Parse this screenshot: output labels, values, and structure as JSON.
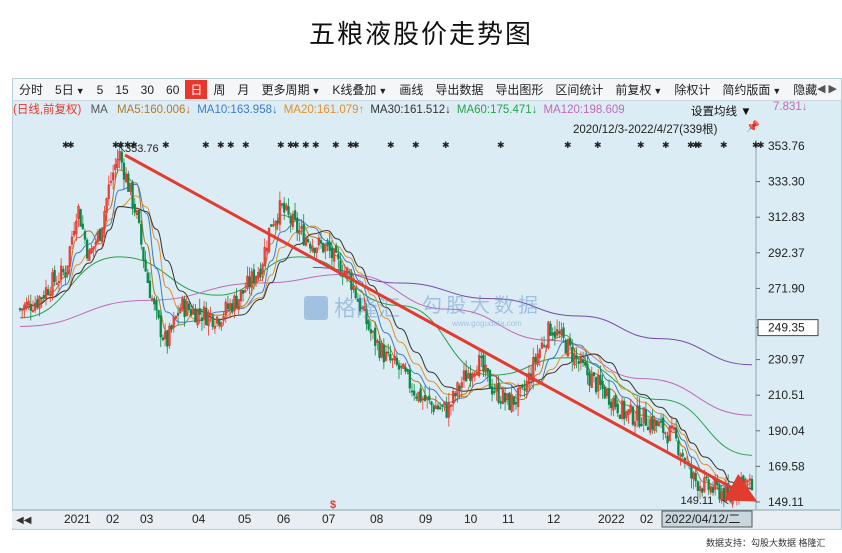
{
  "title": "五粮液股价走势图",
  "toolbar": {
    "items": [
      {
        "label": "分时",
        "dropdown": false,
        "active": false
      },
      {
        "label": "5日",
        "dropdown": true,
        "active": false
      },
      {
        "label": "5",
        "dropdown": false,
        "active": false
      },
      {
        "label": "15",
        "dropdown": false,
        "active": false
      },
      {
        "label": "30",
        "dropdown": false,
        "active": false
      },
      {
        "label": "60",
        "dropdown": false,
        "active": false
      },
      {
        "label": "日",
        "dropdown": false,
        "active": true
      },
      {
        "label": "周",
        "dropdown": false,
        "active": false
      },
      {
        "label": "月",
        "dropdown": false,
        "active": false
      },
      {
        "label": "更多周期",
        "dropdown": true,
        "active": false
      },
      {
        "label": "K线叠加",
        "dropdown": true,
        "active": false
      },
      {
        "label": "画线",
        "dropdown": false,
        "active": false
      },
      {
        "label": "导出数据",
        "dropdown": false,
        "active": false
      },
      {
        "label": "导出图形",
        "dropdown": false,
        "active": false
      },
      {
        "label": "区间统计",
        "dropdown": false,
        "active": false
      },
      {
        "label": "前复权",
        "dropdown": true,
        "active": false
      },
      {
        "label": "除权计",
        "dropdown": false,
        "active": false
      },
      {
        "label": "简约版面",
        "dropdown": true,
        "active": false
      },
      {
        "label": "隐藏",
        "dropdown": false,
        "active": false
      }
    ],
    "right_arrows": "◀ ▶"
  },
  "ma_legend": {
    "prefix": "(日线,前复权)",
    "ma": "MA",
    "items": [
      {
        "label": "MA5:160.006↓",
        "color": "#b07a2a"
      },
      {
        "label": "MA10:163.958↓",
        "color": "#3d7cc9"
      },
      {
        "label": "MA20:161.079↑",
        "color": "#e0902a"
      },
      {
        "label": "MA30:161.512↓",
        "color": "#333333"
      },
      {
        "label": "MA60:175.471↓",
        "color": "#27a24a"
      },
      {
        "label": "MA120:198.609",
        "color": "#c06ab8"
      }
    ],
    "tail": "7.831↓",
    "set_label": "设置均线"
  },
  "range_label": "2020/12/3-2022/4/27(339根)",
  "watermark": {
    "brand": "格隆汇",
    "site": "勾股大数据",
    "url": "www.gogudata.com"
  },
  "footer": "数据支持：勾股大数据  格隆汇",
  "colors": {
    "up": "#e8382c",
    "down": "#0a8a4a",
    "trend": "#e23b2f"
  },
  "chart_data": {
    "type": "candlestick",
    "title": "五粮液股价走势图",
    "period": "2020/12/3-2022/4/27",
    "bar_count": 339,
    "adjustment": "前复权",
    "yaxis_ticks": [
      "353.76",
      "333.30",
      "312.83",
      "292.37",
      "271.90",
      "249.35",
      "230.97",
      "210.51",
      "190.04",
      "169.58",
      "149.11"
    ],
    "ylim": [
      145,
      360
    ],
    "current_price": "249.35",
    "x_labels": [
      "2021",
      "02",
      "03",
      "04",
      "05",
      "06",
      "07",
      "08",
      "09",
      "10",
      "11",
      "12",
      "2022",
      "02"
    ],
    "cursor_date": "2022/04/12/二",
    "max_annotation": {
      "label": "353.76",
      "value": 353.76,
      "date": "2021-02-10"
    },
    "min_annotation": {
      "label": "149.11",
      "value": 149.11,
      "date": "2022-04-12"
    },
    "trendline": {
      "from": {
        "date": "2021-02-10",
        "value": 352
      },
      "to": {
        "date": "2022-04-27",
        "value": 151
      }
    },
    "series_close": [
      {
        "date": "2020-12-03",
        "value": 260
      },
      {
        "date": "2020-12-15",
        "value": 265
      },
      {
        "date": "2020-12-25",
        "value": 275
      },
      {
        "date": "2021-01-04",
        "value": 282
      },
      {
        "date": "2021-01-12",
        "value": 320
      },
      {
        "date": "2021-01-20",
        "value": 290
      },
      {
        "date": "2021-01-28",
        "value": 305
      },
      {
        "date": "2021-02-03",
        "value": 330
      },
      {
        "date": "2021-02-10",
        "value": 350
      },
      {
        "date": "2021-02-22",
        "value": 315
      },
      {
        "date": "2021-03-01",
        "value": 280
      },
      {
        "date": "2021-03-08",
        "value": 255
      },
      {
        "date": "2021-03-15",
        "value": 240
      },
      {
        "date": "2021-03-25",
        "value": 262
      },
      {
        "date": "2021-04-06",
        "value": 258
      },
      {
        "date": "2021-04-20",
        "value": 255
      },
      {
        "date": "2021-05-06",
        "value": 268
      },
      {
        "date": "2021-05-20",
        "value": 285
      },
      {
        "date": "2021-05-27",
        "value": 310
      },
      {
        "date": "2021-06-03",
        "value": 318
      },
      {
        "date": "2021-06-15",
        "value": 305
      },
      {
        "date": "2021-06-25",
        "value": 298
      },
      {
        "date": "2021-07-05",
        "value": 295
      },
      {
        "date": "2021-07-12",
        "value": 286
      },
      {
        "date": "2021-07-20",
        "value": 280
      },
      {
        "date": "2021-07-28",
        "value": 262
      },
      {
        "date": "2021-08-05",
        "value": 245
      },
      {
        "date": "2021-08-15",
        "value": 232
      },
      {
        "date": "2021-08-25",
        "value": 225
      },
      {
        "date": "2021-09-05",
        "value": 212
      },
      {
        "date": "2021-09-15",
        "value": 205
      },
      {
        "date": "2021-09-27",
        "value": 202
      },
      {
        "date": "2021-10-08",
        "value": 220
      },
      {
        "date": "2021-10-18",
        "value": 230
      },
      {
        "date": "2021-10-28",
        "value": 215
      },
      {
        "date": "2021-11-08",
        "value": 206
      },
      {
        "date": "2021-11-18",
        "value": 210
      },
      {
        "date": "2021-11-29",
        "value": 235
      },
      {
        "date": "2021-12-08",
        "value": 250
      },
      {
        "date": "2021-12-18",
        "value": 240
      },
      {
        "date": "2021-12-28",
        "value": 228
      },
      {
        "date": "2022-01-07",
        "value": 218
      },
      {
        "date": "2022-01-18",
        "value": 210
      },
      {
        "date": "2022-01-28",
        "value": 200
      },
      {
        "date": "2022-02-10",
        "value": 198
      },
      {
        "date": "2022-02-22",
        "value": 192
      },
      {
        "date": "2022-03-04",
        "value": 186
      },
      {
        "date": "2022-03-10",
        "value": 176
      },
      {
        "date": "2022-03-16",
        "value": 163
      },
      {
        "date": "2022-03-25",
        "value": 158
      },
      {
        "date": "2022-04-06",
        "value": 155
      },
      {
        "date": "2022-04-12",
        "value": 151
      },
      {
        "date": "2022-04-20",
        "value": 163
      },
      {
        "date": "2022-04-27",
        "value": 157
      }
    ],
    "ma_lines": [
      {
        "name": "MA60",
        "color": "#27a24a",
        "points": [
          {
            "date": "2020-12-03",
            "value": 255
          },
          {
            "date": "2021-02-10",
            "value": 290
          },
          {
            "date": "2021-04-20",
            "value": 268
          },
          {
            "date": "2021-06-15",
            "value": 290
          },
          {
            "date": "2021-08-25",
            "value": 262
          },
          {
            "date": "2021-10-28",
            "value": 222
          },
          {
            "date": "2021-12-18",
            "value": 232
          },
          {
            "date": "2022-02-22",
            "value": 208
          },
          {
            "date": "2022-04-27",
            "value": 176
          }
        ]
      },
      {
        "name": "MA120",
        "color": "#c06ab8",
        "points": [
          {
            "date": "2020-12-03",
            "value": 250
          },
          {
            "date": "2021-03-01",
            "value": 265
          },
          {
            "date": "2021-05-20",
            "value": 275
          },
          {
            "date": "2021-07-20",
            "value": 280
          },
          {
            "date": "2021-09-27",
            "value": 260
          },
          {
            "date": "2021-12-08",
            "value": 242
          },
          {
            "date": "2022-02-10",
            "value": 220
          },
          {
            "date": "2022-04-27",
            "value": 199
          }
        ]
      },
      {
        "name": "MA250",
        "color": "#7a4aa8",
        "points": [
          {
            "date": "2021-06-25",
            "value": 284
          },
          {
            "date": "2021-08-25",
            "value": 275
          },
          {
            "date": "2021-10-28",
            "value": 266
          },
          {
            "date": "2021-12-28",
            "value": 256
          },
          {
            "date": "2022-02-22",
            "value": 243
          },
          {
            "date": "2022-04-27",
            "value": 228
          }
        ]
      }
    ]
  }
}
